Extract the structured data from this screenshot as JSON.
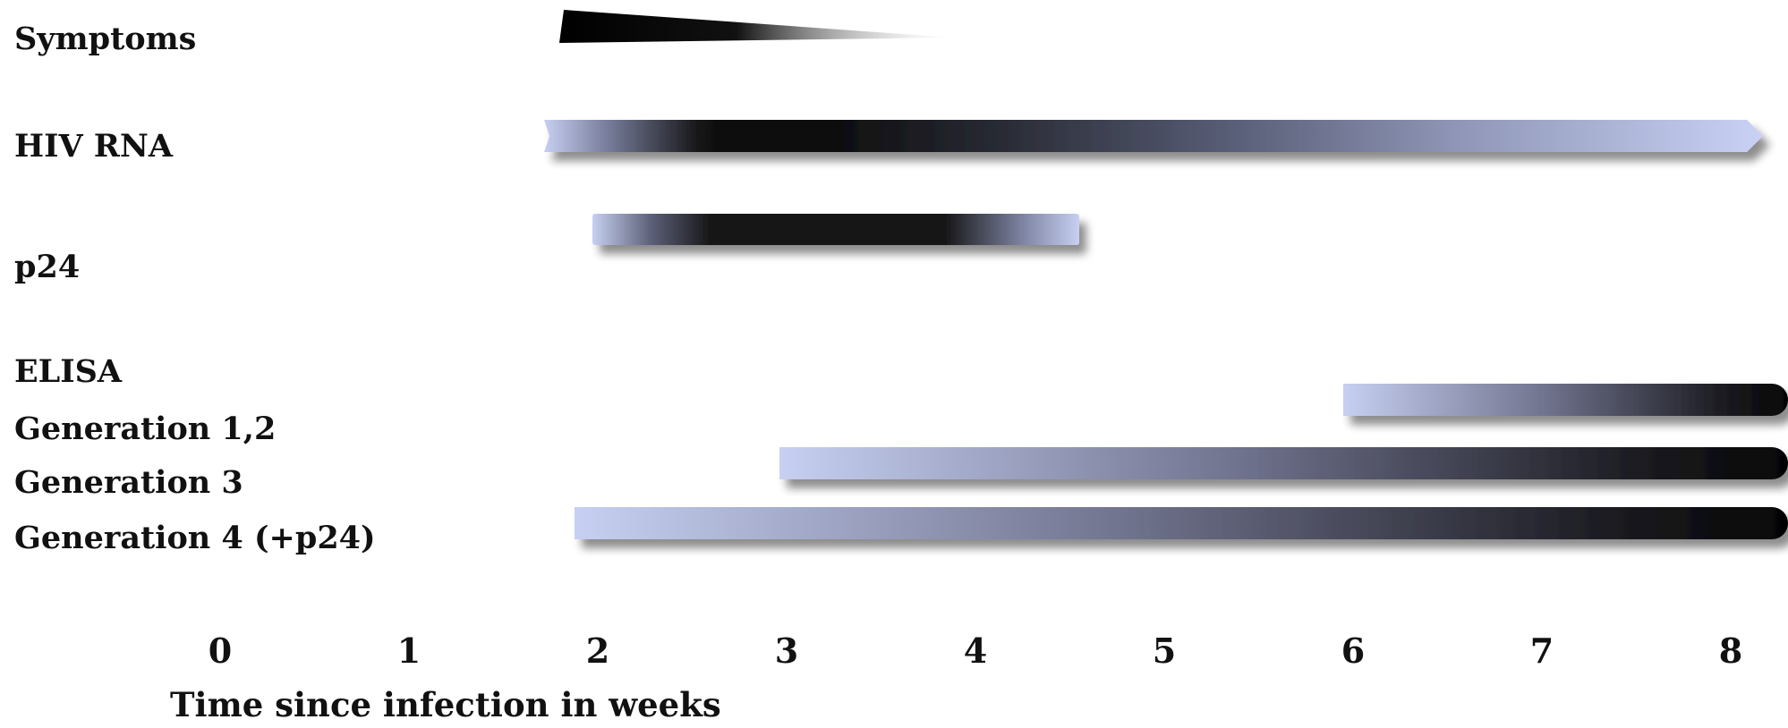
{
  "rows": {
    "symptoms": "Symptoms",
    "hiv_rna": "HIV RNA",
    "p24": "p24",
    "elisa": "ELISA",
    "gen12": "Generation 1,2",
    "gen3": "Generation 3",
    "gen4": "Generation 4 (+p24)"
  },
  "axis": {
    "title": "Time since infection in weeks",
    "ticks": [
      "0",
      "1",
      "2",
      "3",
      "4",
      "5",
      "6",
      "7",
      "8"
    ]
  },
  "colors": {
    "light": "#c7d0f2",
    "mid": "#71748f",
    "dark": "#0a0a0a"
  },
  "intervals": {
    "symptoms": {
      "start_week": 1.9,
      "end_week": 4.0,
      "shape": "tapered wedge, dark at onset fading out"
    },
    "hiv_rna": {
      "start_week": 1.8,
      "end_week": 8.2,
      "peak": "weeks 2.5–3.5"
    },
    "p24": {
      "start_week": 2.05,
      "end_week": 4.6,
      "peak": "weeks 2.5–4"
    },
    "gen12": {
      "start_week": 6.0,
      "end_week": 8.4
    },
    "gen3": {
      "start_week": 3.0,
      "end_week": 8.4
    },
    "gen4": {
      "start_week": 1.95,
      "end_week": 8.4
    }
  }
}
